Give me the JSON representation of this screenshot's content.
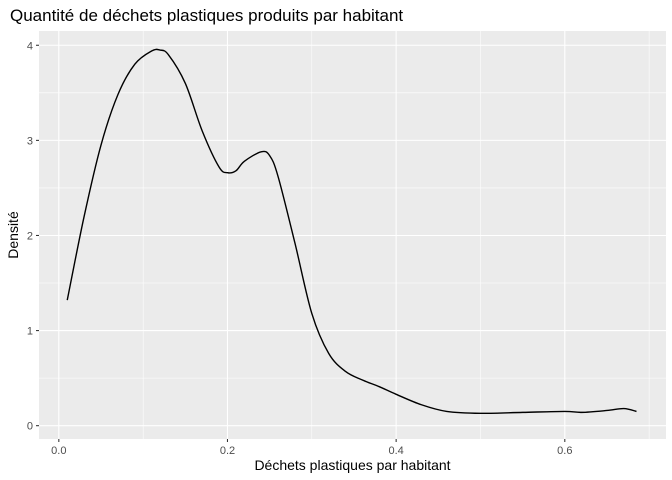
{
  "chart_data": {
    "type": "line",
    "title": "Quantité de déchets plastiques produits par habitant",
    "xlabel": "Déchets plastiques par habitant",
    "ylabel": "Densité",
    "xlim": [
      -0.0235,
      0.72
    ],
    "ylim": [
      -0.14,
      4.15
    ],
    "x_ticks": [
      0.0,
      0.2,
      0.4,
      0.6
    ],
    "x_tick_labels": [
      "0.0",
      "0.2",
      "0.4",
      "0.6"
    ],
    "y_ticks": [
      0,
      1,
      2,
      3,
      4
    ],
    "y_tick_labels": [
      "0",
      "1",
      "2",
      "3",
      "4"
    ],
    "grid": true,
    "series": [
      {
        "x": [
          0.01,
          0.03,
          0.05,
          0.07,
          0.09,
          0.11,
          0.12,
          0.13,
          0.15,
          0.17,
          0.19,
          0.2,
          0.21,
          0.22,
          0.24,
          0.25,
          0.26,
          0.28,
          0.3,
          0.32,
          0.34,
          0.36,
          0.38,
          0.4,
          0.43,
          0.46,
          0.5,
          0.55,
          0.6,
          0.62,
          0.65,
          0.67,
          0.685
        ],
        "y": [
          1.32,
          2.2,
          2.95,
          3.48,
          3.8,
          3.94,
          3.95,
          3.9,
          3.6,
          3.1,
          2.72,
          2.66,
          2.68,
          2.78,
          2.88,
          2.84,
          2.62,
          1.92,
          1.18,
          0.76,
          0.57,
          0.48,
          0.41,
          0.33,
          0.22,
          0.15,
          0.13,
          0.14,
          0.15,
          0.14,
          0.16,
          0.18,
          0.15
        ]
      }
    ]
  }
}
